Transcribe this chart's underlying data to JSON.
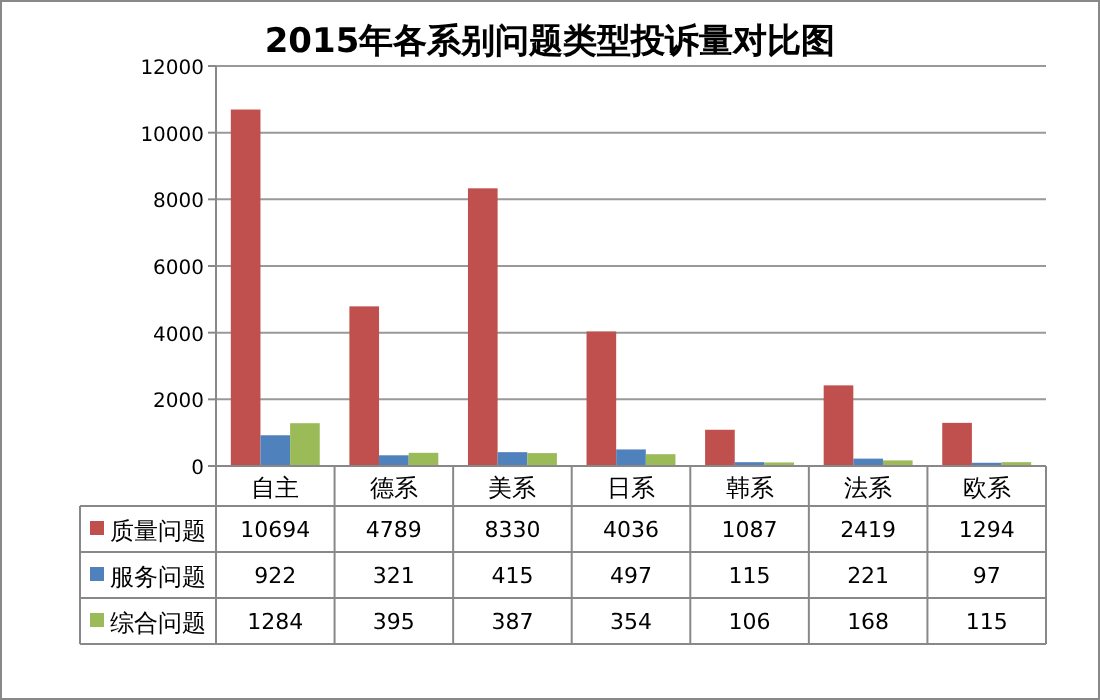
{
  "chart_data": {
    "type": "bar",
    "title": "2015年各系别问题类型投诉量对比图",
    "categories": [
      "自主",
      "德系",
      "美系",
      "日系",
      "韩系",
      "法系",
      "欧系"
    ],
    "series": [
      {
        "name": "质量问题",
        "color": "#c0504d",
        "values": [
          10694,
          4789,
          8330,
          4036,
          1087,
          2419,
          1294
        ]
      },
      {
        "name": "服务问题",
        "color": "#4f81bd",
        "values": [
          922,
          321,
          415,
          497,
          115,
          221,
          97
        ]
      },
      {
        "name": "综合问题",
        "color": "#9bbb59",
        "values": [
          1284,
          395,
          387,
          354,
          106,
          168,
          115
        ]
      }
    ],
    "ylim": [
      0,
      12000
    ],
    "yticks": [
      0,
      2000,
      4000,
      6000,
      8000,
      10000,
      12000
    ],
    "grid": "y",
    "legend": "bottom",
    "data_labels": true
  }
}
